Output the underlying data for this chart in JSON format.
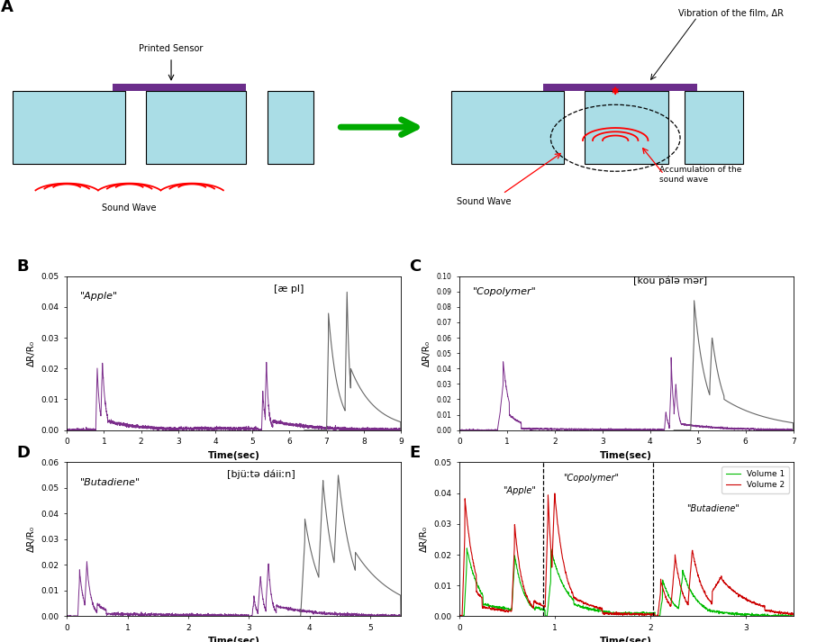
{
  "label_printed_sensor": "Printed Sensor",
  "label_sound_wave_left": "Sound Wave",
  "label_sound_wave_right": "Sound Wave",
  "label_vibration": "Vibration of the film, ΔR",
  "label_accumulation": "Accumulation of the\nsound wave",
  "label_apple": "\"Apple\"",
  "label_apple_phonetic": "[æ pl]",
  "label_copolymer": "\"Copolymer\"",
  "label_copolymer_phonetic": "[kou pálə mər]",
  "label_butadiene": "\"Butadiene\"",
  "label_butadiene_phonetic": "[bjüːtə dáiiːn]",
  "label_xlabel": "Time(sec)",
  "label_ylabel": "ΔR/R₀",
  "box_color": "#aadde6",
  "sensor_color": "#6B2D8B",
  "purple_line": "#7B2D8B",
  "gray_line": "#666666",
  "green_line": "#00bb00",
  "red_line": "#cc0000",
  "volume1_label": "Volume 1",
  "volume2_label": "Volume 2"
}
